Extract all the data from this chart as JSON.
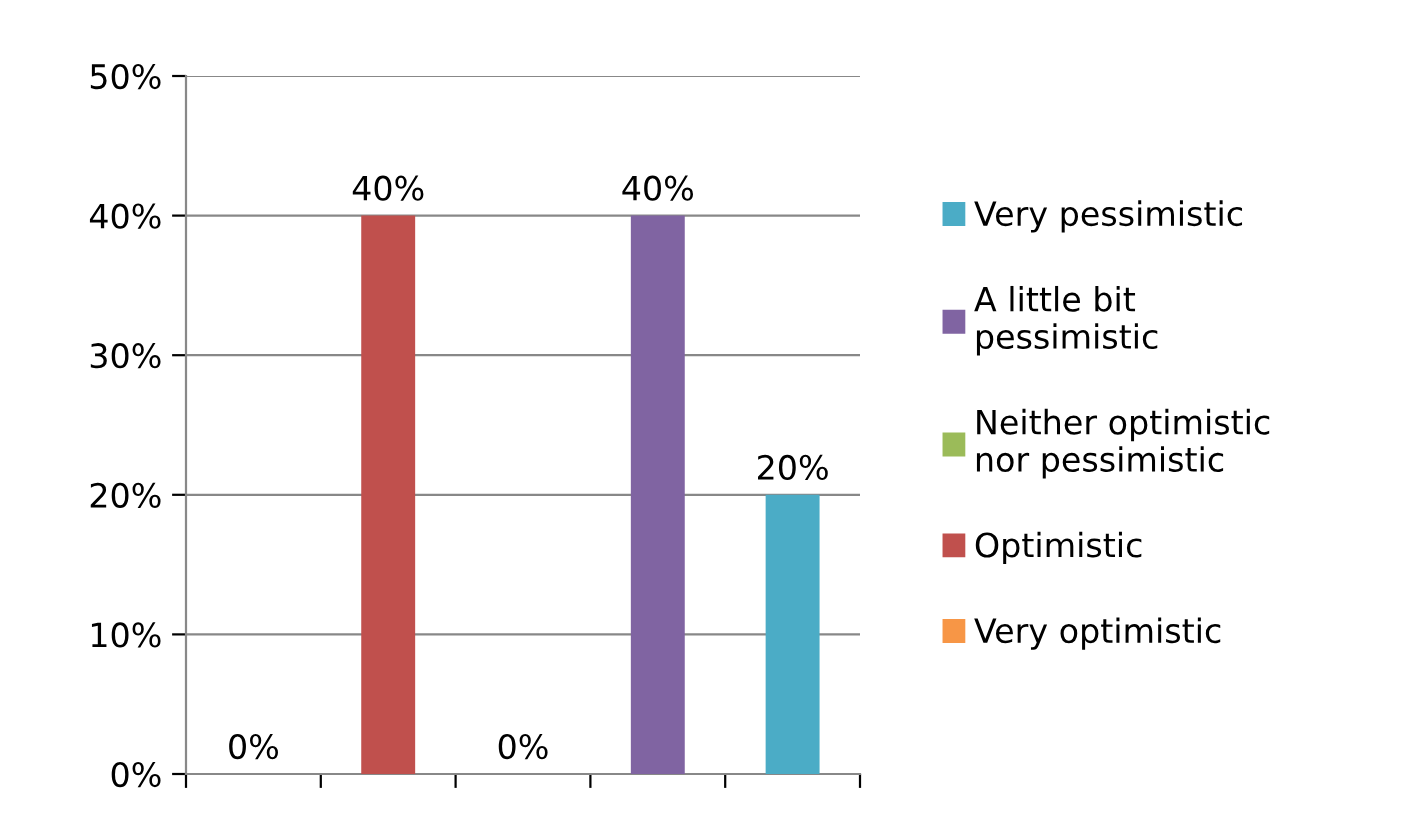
{
  "chart_data": {
    "type": "bar",
    "categories": [
      null,
      null,
      null,
      null,
      null
    ],
    "series": [
      {
        "name": "Very pessimistic",
        "color": "#4bacc6",
        "values": [
          null,
          null,
          null,
          null,
          20
        ],
        "value_labels": [
          null,
          null,
          null,
          null,
          "20%"
        ]
      },
      {
        "name": "A little bit pessimistic",
        "color": "#8064a2",
        "values": [
          null,
          null,
          null,
          40,
          null
        ],
        "value_labels": [
          null,
          null,
          null,
          "40%",
          null
        ]
      },
      {
        "name": "Neither optimistic nor pessimistic",
        "color": "#9bbb59",
        "values": [
          null,
          null,
          0,
          null,
          null
        ],
        "value_labels": [
          null,
          null,
          "0%",
          null,
          null
        ]
      },
      {
        "name": "Optimistic",
        "color": "#c0504d",
        "values": [
          null,
          40,
          null,
          null,
          null
        ],
        "value_labels": [
          null,
          "40%",
          null,
          null,
          null
        ]
      },
      {
        "name": "Very optimistic",
        "color": "#f79646",
        "values": [
          0,
          null,
          null,
          null,
          null
        ],
        "value_labels": [
          "0%",
          null,
          null,
          null,
          null
        ]
      }
    ],
    "ylim": [
      0,
      50
    ],
    "yticks": [
      {
        "value": 0,
        "label": "0%"
      },
      {
        "value": 10,
        "label": "10%"
      },
      {
        "value": 20,
        "label": "20%"
      },
      {
        "value": 30,
        "label": "30%"
      },
      {
        "value": 40,
        "label": "40%"
      },
      {
        "value": 50,
        "label": "50%"
      }
    ],
    "grid": "y",
    "legend": "right"
  }
}
